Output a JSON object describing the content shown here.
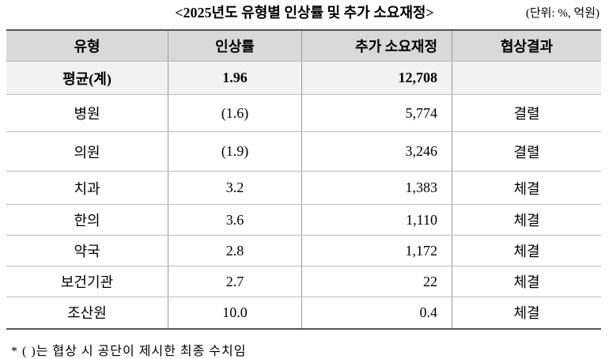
{
  "header": {
    "title": "<2025년도 유형별 인상률 및 추가 소요재정>",
    "unit": "(단위: %, 억원)"
  },
  "table": {
    "columns": [
      "유형",
      "인상률",
      "추가 소요재정",
      "협상결과"
    ],
    "rows": [
      [
        "평균(계)",
        "1.96",
        "12,708",
        ""
      ],
      [
        "병원",
        "(1.6)",
        "5,774",
        "결렬"
      ],
      [
        "의원",
        "(1.9)",
        "3,246",
        "결렬"
      ],
      [
        "치과",
        "3.2",
        "1,383",
        "체결"
      ],
      [
        "한의",
        "3.6",
        "1,110",
        "체결"
      ],
      [
        "약국",
        "2.8",
        "1,172",
        "체결"
      ],
      [
        "보건기관",
        "2.7",
        "22",
        "체결"
      ],
      [
        "조산원",
        "10.0",
        "0.4",
        "체결"
      ]
    ]
  },
  "footnote": "* (    )는 협상 시 공단이 제시한 최종 수치임"
}
